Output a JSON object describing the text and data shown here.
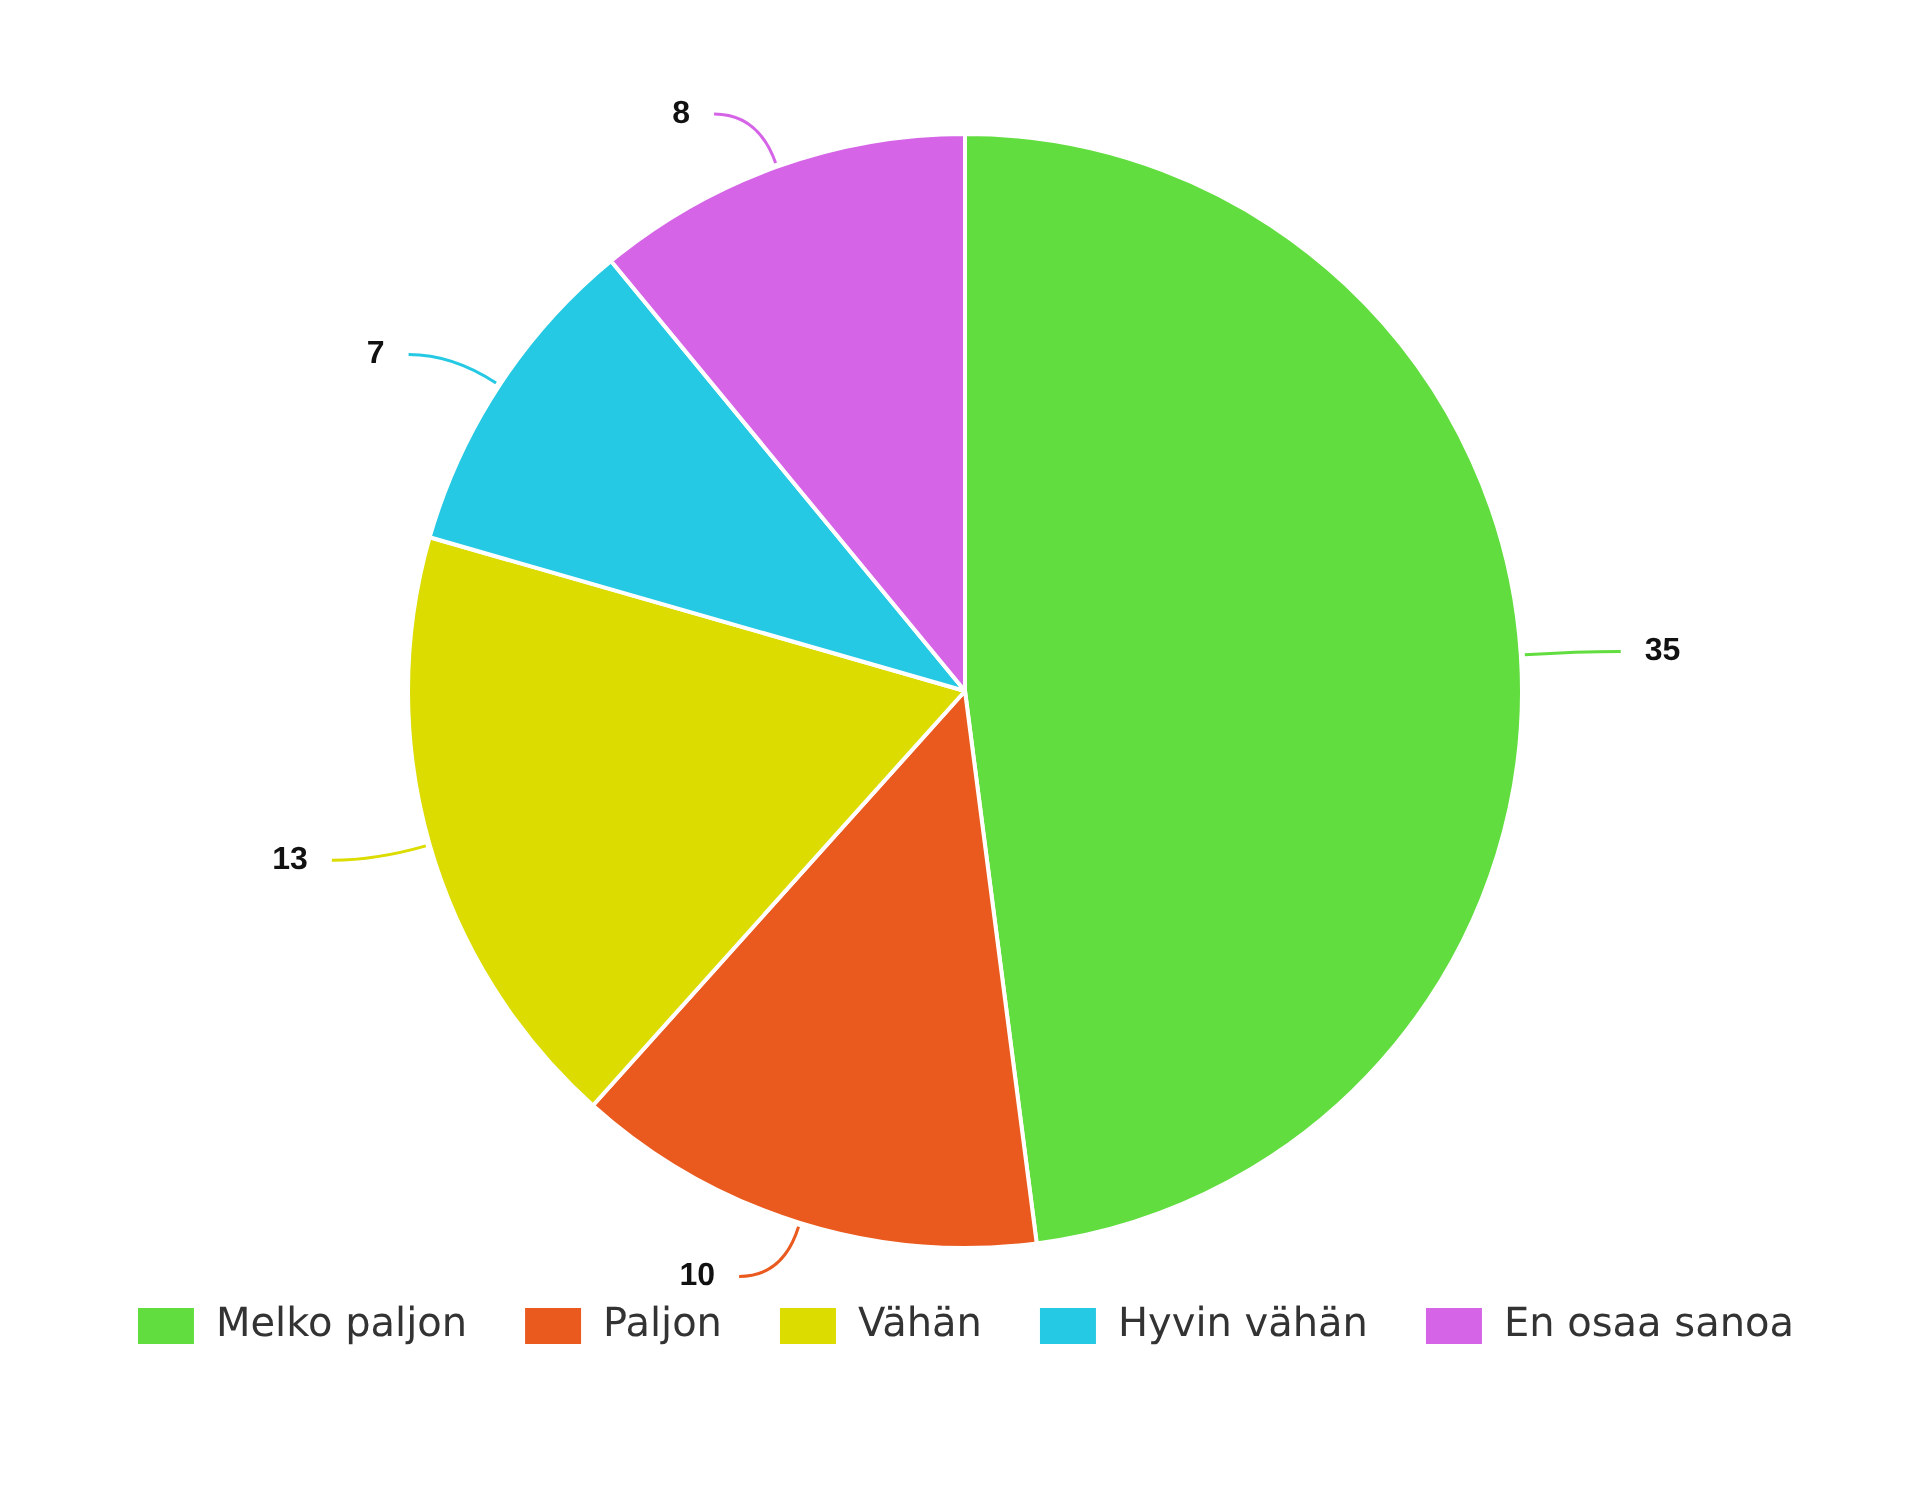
{
  "chart_data": {
    "type": "pie",
    "categories": [
      "Melko paljon",
      "Paljon",
      "Vähän",
      "Hyvin vähän",
      "En osaa sanoa"
    ],
    "values": [
      35,
      10,
      13,
      7,
      8
    ],
    "colors": [
      "#62dd3f",
      "#ea5a1e",
      "#dcdc00",
      "#26c9e3",
      "#d564e7"
    ],
    "data_labels": true,
    "legend": "bottom"
  }
}
